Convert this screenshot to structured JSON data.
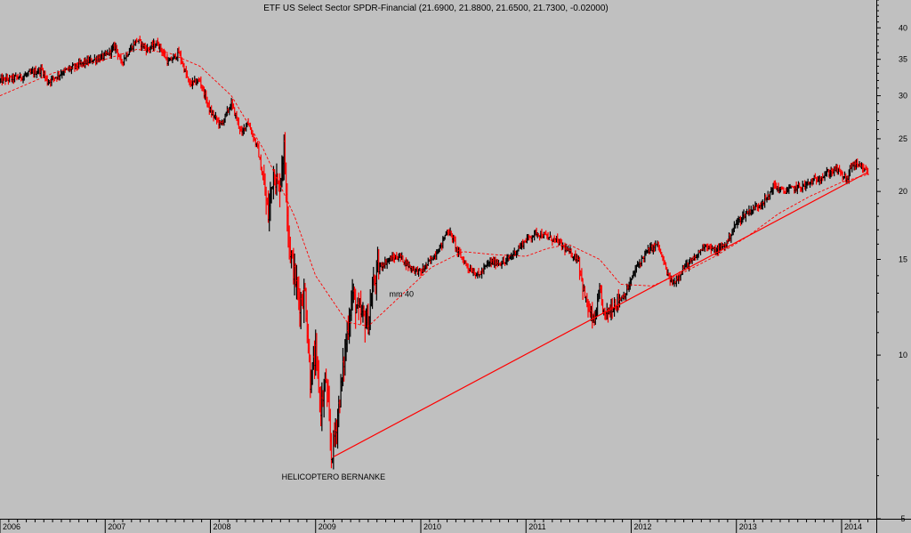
{
  "chart_data": {
    "type": "candlestick",
    "title": "ETF US Select Sector SPDR-Financial (21.6900, 21.8800, 21.6500, 21.7300, -0.02000)",
    "y_scale": "log",
    "ylim": [
      5,
      45
    ],
    "y_ticks": [
      "40",
      "35",
      "30",
      "25",
      "20",
      "15",
      "10",
      "5"
    ],
    "y_tick_values": [
      40,
      35,
      30,
      25,
      20,
      15,
      10,
      5
    ],
    "x_ticks": [
      "2006",
      "2007",
      "2008",
      "2009",
      "2010",
      "2011",
      "2012",
      "2013",
      "2014"
    ],
    "x_range": [
      "2006-01",
      "2014-04"
    ],
    "grid": false,
    "colors": {
      "background": "#c0c0c0",
      "up": "#000000",
      "down": "#ff0000",
      "moving_average": "#ff0000",
      "trendline": "#ff0000",
      "annotation": "#0000ff"
    },
    "series": [
      {
        "name": "mm 40",
        "style": "dashed",
        "values": [
          [
            2006.0,
            30
          ],
          [
            2006.5,
            33
          ],
          [
            2007.0,
            35
          ],
          [
            2007.3,
            36.5
          ],
          [
            2007.6,
            36
          ],
          [
            2007.9,
            34
          ],
          [
            2008.2,
            30
          ],
          [
            2008.5,
            24
          ],
          [
            2008.8,
            18
          ],
          [
            2009.0,
            14
          ],
          [
            2009.3,
            11.5
          ],
          [
            2009.5,
            11.3
          ],
          [
            2009.8,
            12.8
          ],
          [
            2010.1,
            14.5
          ],
          [
            2010.4,
            15.5
          ],
          [
            2010.7,
            15.3
          ],
          [
            2011.0,
            15.2
          ],
          [
            2011.2,
            15.7
          ],
          [
            2011.4,
            16
          ],
          [
            2011.7,
            15
          ],
          [
            2011.9,
            13.5
          ],
          [
            2012.2,
            13.4
          ],
          [
            2012.5,
            14.2
          ],
          [
            2012.8,
            15.2
          ],
          [
            2013.1,
            16.5
          ],
          [
            2013.4,
            18.2
          ],
          [
            2013.7,
            19.6
          ],
          [
            2014.0,
            20.8
          ],
          [
            2014.25,
            21.5
          ]
        ]
      },
      {
        "name": "trendline",
        "style": "solid",
        "values": [
          [
            2009.17,
            6.5
          ],
          [
            2014.25,
            21.7
          ]
        ]
      }
    ],
    "price_path": [
      [
        2006.0,
        32
      ],
      [
        2006.2,
        32.5
      ],
      [
        2006.4,
        33.5
      ],
      [
        2006.45,
        31.8
      ],
      [
        2006.6,
        33.2
      ],
      [
        2006.8,
        34.5
      ],
      [
        2007.0,
        35.5
      ],
      [
        2007.1,
        37
      ],
      [
        2007.15,
        34.5
      ],
      [
        2007.3,
        38
      ],
      [
        2007.4,
        36.5
      ],
      [
        2007.5,
        37.5
      ],
      [
        2007.6,
        34.5
      ],
      [
        2007.7,
        36
      ],
      [
        2007.8,
        31.5
      ],
      [
        2007.9,
        32
      ],
      [
        2008.0,
        28
      ],
      [
        2008.1,
        26.5
      ],
      [
        2008.2,
        29
      ],
      [
        2008.3,
        25.5
      ],
      [
        2008.35,
        27
      ],
      [
        2008.45,
        24
      ],
      [
        2008.5,
        21
      ],
      [
        2008.55,
        18
      ],
      [
        2008.6,
        22
      ],
      [
        2008.65,
        20
      ],
      [
        2008.7,
        24
      ],
      [
        2008.75,
        16
      ],
      [
        2008.8,
        14
      ],
      [
        2008.85,
        12.5
      ],
      [
        2008.9,
        13
      ],
      [
        2008.95,
        9
      ],
      [
        2009.0,
        10
      ],
      [
        2009.05,
        8
      ],
      [
        2009.1,
        9
      ],
      [
        2009.15,
        6.5
      ],
      [
        2009.2,
        7.5
      ],
      [
        2009.25,
        9
      ],
      [
        2009.3,
        11
      ],
      [
        2009.35,
        13
      ],
      [
        2009.4,
        12
      ],
      [
        2009.5,
        11.5
      ],
      [
        2009.55,
        13.5
      ],
      [
        2009.6,
        14.5
      ],
      [
        2009.7,
        15
      ],
      [
        2009.8,
        15.2
      ],
      [
        2009.9,
        14.5
      ],
      [
        2010.0,
        14.2
      ],
      [
        2010.1,
        15
      ],
      [
        2010.2,
        16
      ],
      [
        2010.25,
        17
      ],
      [
        2010.3,
        16.5
      ],
      [
        2010.35,
        15.5
      ],
      [
        2010.45,
        14.5
      ],
      [
        2010.55,
        14
      ],
      [
        2010.65,
        14.8
      ],
      [
        2010.8,
        14.8
      ],
      [
        2010.9,
        15.5
      ],
      [
        2011.0,
        16.3
      ],
      [
        2011.1,
        16.8
      ],
      [
        2011.2,
        16.5
      ],
      [
        2011.3,
        16.2
      ],
      [
        2011.4,
        15.5
      ],
      [
        2011.5,
        15
      ],
      [
        2011.55,
        13
      ],
      [
        2011.6,
        12
      ],
      [
        2011.65,
        11.5
      ],
      [
        2011.7,
        13
      ],
      [
        2011.75,
        11.8
      ],
      [
        2011.85,
        12.5
      ],
      [
        2011.95,
        13
      ],
      [
        2012.05,
        14.5
      ],
      [
        2012.15,
        15.5
      ],
      [
        2012.25,
        16
      ],
      [
        2012.35,
        14
      ],
      [
        2012.4,
        13.5
      ],
      [
        2012.5,
        14.5
      ],
      [
        2012.6,
        15
      ],
      [
        2012.7,
        16
      ],
      [
        2012.8,
        15.5
      ],
      [
        2012.9,
        16
      ],
      [
        2013.0,
        17.5
      ],
      [
        2013.1,
        18.3
      ],
      [
        2013.2,
        18.8
      ],
      [
        2013.3,
        19.5
      ],
      [
        2013.35,
        20.5
      ],
      [
        2013.45,
        20
      ],
      [
        2013.55,
        20.3
      ],
      [
        2013.65,
        20.5
      ],
      [
        2013.75,
        21
      ],
      [
        2013.85,
        21.5
      ],
      [
        2013.95,
        22
      ],
      [
        2014.05,
        21
      ],
      [
        2014.1,
        22.5
      ],
      [
        2014.2,
        22
      ],
      [
        2014.25,
        21.7
      ]
    ],
    "annotations": [
      {
        "text": "mm 40",
        "x": 2009.7,
        "y": 12.8
      },
      {
        "text": "HELICOPTERO BERNANKE",
        "x": 2009.17,
        "y": 5.9
      }
    ]
  }
}
